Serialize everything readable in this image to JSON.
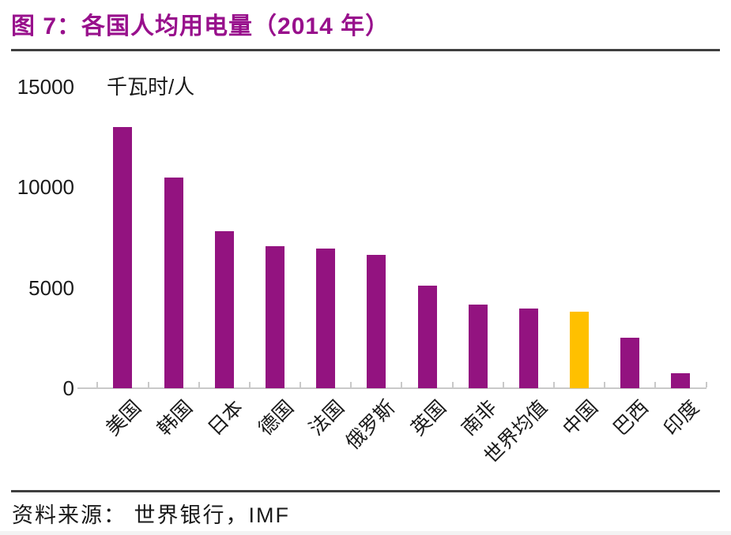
{
  "header": {
    "title": "图 7：各国人均用电量（2014 年）"
  },
  "footer": {
    "source": "资料来源： 世界银行，IMF"
  },
  "chart_data": {
    "type": "bar",
    "title": "各国人均用电量（2014 年）",
    "unit_label": "千瓦时/人",
    "xlabel": "",
    "ylabel": "千瓦时/人",
    "categories": [
      "美国",
      "韩国",
      "日本",
      "德国",
      "法国",
      "俄罗斯",
      "英国",
      "南非",
      "世界均值",
      "中国",
      "巴西",
      "印度"
    ],
    "values": [
      13000,
      10500,
      7800,
      7050,
      6950,
      6650,
      5100,
      4150,
      3950,
      3800,
      2500,
      750
    ],
    "yticks": [
      0,
      5000,
      10000,
      15000
    ],
    "ylim": [
      0,
      15000
    ],
    "grid": false,
    "legend": "none",
    "highlight_category": "中国"
  },
  "colors": {
    "title_purple": "#98108C",
    "bar_purple": "#931380",
    "highlight_gold": "#FFC000",
    "axis_gray": "#C9C9C9",
    "rule_dark": "#3F3F3F",
    "text_dark": "#1A1A1A"
  }
}
